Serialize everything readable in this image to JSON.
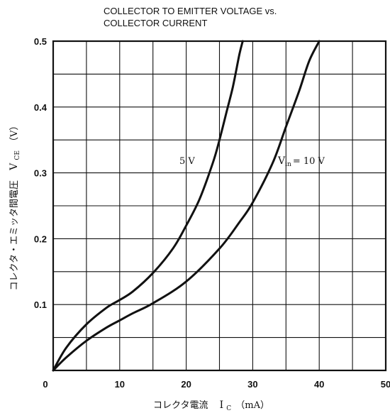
{
  "chart_data": {
    "type": "line",
    "title_lines": [
      "COLLECTOR TO EMITTER VOLTAGE vs.",
      "COLLECTOR CURRENT"
    ],
    "xlabel": {
      "text": "コレクタ電流",
      "symbol": "I",
      "symbol_sub": "C",
      "unit": "（mA）"
    },
    "ylabel": {
      "text": "コレクタ・エミッタ間電圧",
      "symbol": "V",
      "symbol_sub": "CE",
      "unit": "（V）"
    },
    "xlim": [
      0,
      50
    ],
    "ylim": [
      0,
      0.5
    ],
    "x_ticks": [
      0,
      10,
      20,
      30,
      40,
      50
    ],
    "x_tick_labels": [
      "0",
      "10",
      "20",
      "30",
      "40",
      "50"
    ],
    "y_ticks": [
      0.1,
      0.2,
      0.3,
      0.4,
      0.5
    ],
    "y_tick_labels": [
      "0.1",
      "0.2",
      "0.3",
      "0.4",
      "0.5"
    ],
    "grid": true,
    "minor_grid_x": 5,
    "minor_grid_y": 0.05,
    "series": [
      {
        "name": "5 V",
        "label": {
          "text": "5 V"
        },
        "x": [
          0,
          2,
          5,
          8,
          10,
          12,
          15,
          18,
          20,
          22,
          24,
          25,
          26,
          27,
          28,
          28.5
        ],
        "y": [
          0,
          0.035,
          0.07,
          0.095,
          0.107,
          0.12,
          0.148,
          0.185,
          0.22,
          0.26,
          0.315,
          0.35,
          0.39,
          0.43,
          0.48,
          0.5
        ]
      },
      {
        "name": "Vin=10 V",
        "label": {
          "symbol": "V",
          "symbol_sub": "in",
          "rest": "= 10 V"
        },
        "x": [
          0,
          2,
          5,
          8,
          10,
          12,
          15,
          20,
          25,
          28,
          30,
          33,
          35,
          37,
          38.5,
          40
        ],
        "y": [
          0,
          0.02,
          0.045,
          0.065,
          0.076,
          0.087,
          0.102,
          0.135,
          0.185,
          0.225,
          0.255,
          0.315,
          0.37,
          0.425,
          0.47,
          0.5
        ]
      }
    ]
  }
}
